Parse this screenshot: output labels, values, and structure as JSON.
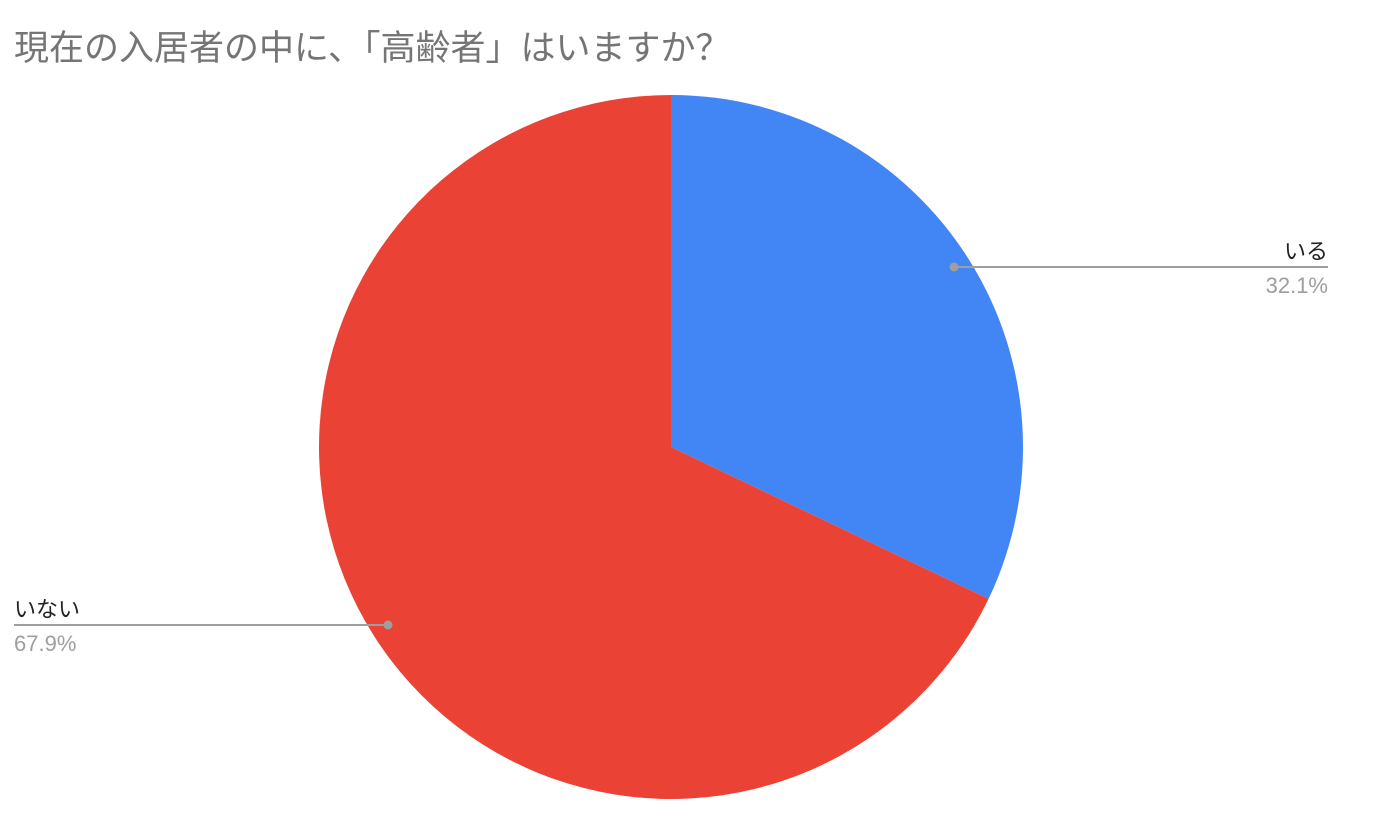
{
  "chart_data": {
    "type": "pie",
    "title": "現在の入居者の中に、「高齢者」はいますか？",
    "slices": [
      {
        "label": "いる",
        "value": 32.1,
        "value_label": "32.1%",
        "color": "#4285F4"
      },
      {
        "label": "いない",
        "value": 67.9,
        "value_label": "67.9%",
        "color": "#EA4335"
      }
    ],
    "start_angle": "12 o'clock",
    "direction": "clockwise",
    "label_color": "#222222",
    "value_label_color": "#9E9E9E",
    "leader_line_color": "#9E9E9E"
  }
}
